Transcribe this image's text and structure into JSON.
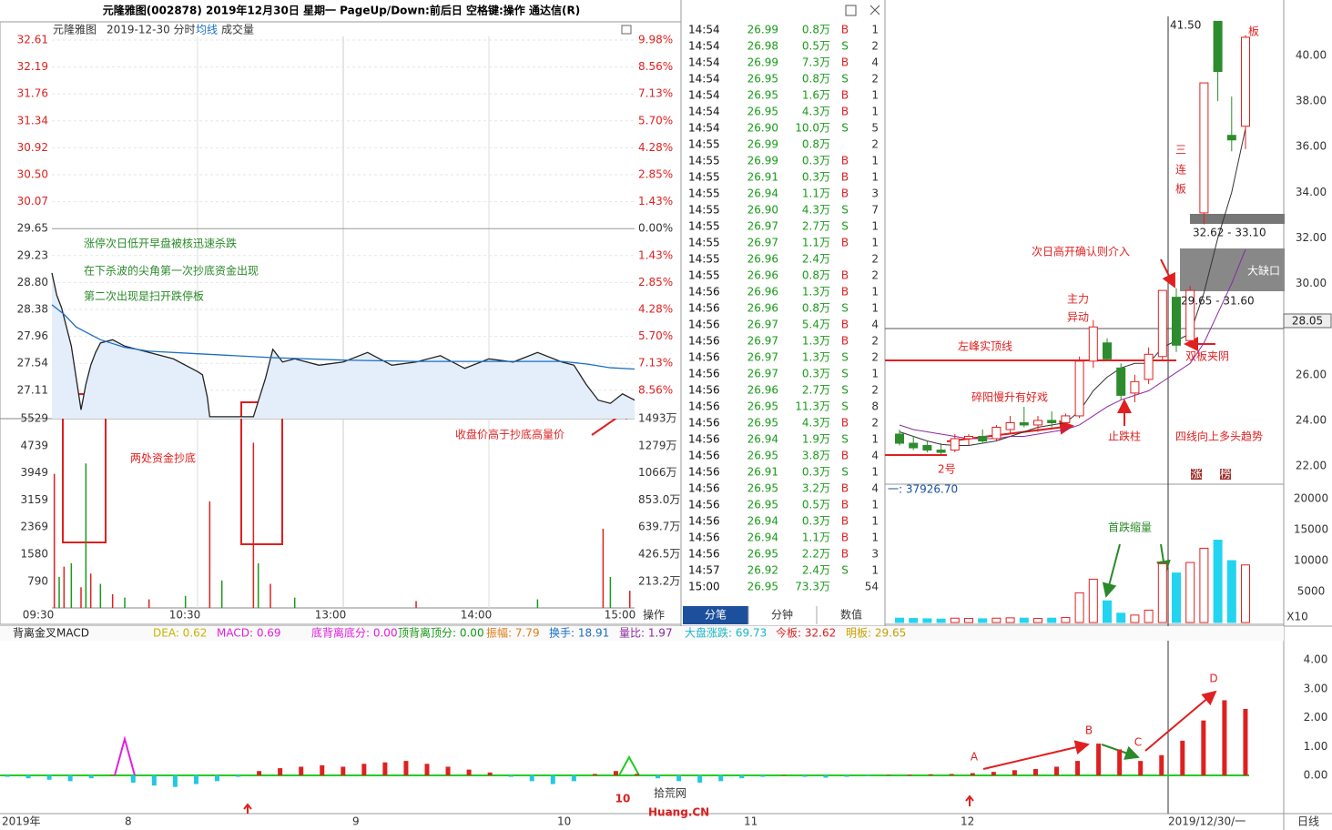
{
  "header": {
    "title": "元隆雅图(002878) 2019年12月30日 星期一 PageUp/Down:前后日 空格键:操作 通达信(R)"
  },
  "intraday": {
    "name": "元隆雅图",
    "date": "2019-12-30 分时",
    "avg_label": "均线",
    "vol_label": "成交量",
    "op": "操作",
    "price_ticks": [
      "32.61",
      "32.19",
      "31.76",
      "31.34",
      "30.92",
      "30.50",
      "30.07",
      "29.65",
      "29.23",
      "28.80",
      "28.38",
      "27.96",
      "27.54",
      "27.11"
    ],
    "pct_ticks": [
      "9.98%",
      "8.56%",
      "7.13%",
      "5.70%",
      "4.28%",
      "2.85%",
      "1.43%",
      "0.00%",
      "1.43%",
      "2.85%",
      "4.28%",
      "5.70%",
      "7.13%",
      "8.56%"
    ],
    "vol_ticks": [
      "5529",
      "4739",
      "3949",
      "3159",
      "2369",
      "1580",
      "790"
    ],
    "vol_ticks_right": [
      "1493万",
      "1279万",
      "1066万",
      "853.0万",
      "639.7万",
      "426.5万",
      "213.2万"
    ],
    "times": [
      "09:30",
      "10:30",
      "13:00",
      "14:00",
      "15:00"
    ],
    "price": {
      "t": [
        0,
        2,
        4,
        6,
        8,
        10,
        12,
        14,
        16,
        18,
        20,
        25,
        30,
        40,
        50,
        60,
        62,
        64,
        65,
        70,
        80,
        83,
        88,
        91,
        95,
        100,
        110,
        120,
        130,
        140,
        150,
        160,
        170,
        180,
        190,
        200,
        210,
        215,
        220,
        225,
        230,
        235,
        240
      ],
      "values": [
        28.95,
        28.6,
        28.4,
        28.1,
        27.8,
        27.3,
        26.8,
        27.2,
        27.5,
        27.7,
        27.85,
        27.9,
        27.8,
        27.7,
        27.6,
        27.4,
        27.35,
        27.0,
        26.69,
        26.69,
        26.69,
        26.69,
        27.3,
        27.75,
        27.55,
        27.6,
        27.5,
        27.55,
        27.7,
        27.5,
        27.55,
        27.65,
        27.45,
        27.6,
        27.55,
        27.7,
        27.55,
        27.5,
        27.2,
        26.95,
        26.9,
        27.05,
        26.95
      ]
    },
    "avg": {
      "t": [
        0,
        5,
        10,
        20,
        30,
        40,
        60,
        90,
        120,
        150,
        180,
        210,
        220,
        230,
        240
      ],
      "values": [
        28.45,
        28.3,
        28.1,
        27.9,
        27.78,
        27.72,
        27.68,
        27.62,
        27.58,
        27.56,
        27.56,
        27.56,
        27.52,
        27.46,
        27.44
      ]
    },
    "volume": {
      "t": [
        1,
        3,
        5,
        8,
        12,
        14,
        16,
        20,
        25,
        30,
        40,
        55,
        65,
        70,
        83,
        85,
        90,
        100,
        150,
        200,
        227,
        230,
        238
      ],
      "values": [
        3900,
        900,
        1200,
        1300,
        600,
        4200,
        1000,
        700,
        400,
        300,
        250,
        350,
        3100,
        800,
        4800,
        1300,
        700,
        300,
        200,
        250,
        2300,
        900,
        500
      ]
    },
    "notes": [
      "涨停次日低开早盘被核迅速杀跌",
      "在下杀波的尖角第一次抄底资金出现",
      "第二次出现是扫开跌停板"
    ],
    "callouts": [
      "两处资金抄底",
      "收盘价高于抄底高量价"
    ]
  },
  "ticks": {
    "tabs": [
      "分笔",
      "分钟",
      "数值"
    ],
    "rows": [
      [
        "14:54",
        "26.99",
        "0.8万",
        "B",
        "1"
      ],
      [
        "14:54",
        "26.98",
        "0.5万",
        "S",
        "2"
      ],
      [
        "14:54",
        "26.99",
        "7.3万",
        "B",
        "4"
      ],
      [
        "14:54",
        "26.95",
        "0.8万",
        "S",
        "2"
      ],
      [
        "14:54",
        "26.95",
        "1.6万",
        "B",
        "1"
      ],
      [
        "14:54",
        "26.95",
        "4.3万",
        "B",
        "1"
      ],
      [
        "14:54",
        "26.90",
        "10.0万",
        "S",
        "5"
      ],
      [
        "14:55",
        "26.99",
        "0.8万",
        null,
        "2"
      ],
      [
        "14:55",
        "26.99",
        "0.3万",
        "B",
        "1"
      ],
      [
        "14:55",
        "26.91",
        "0.3万",
        "B",
        "1"
      ],
      [
        "14:55",
        "26.94",
        "1.1万",
        "B",
        "3"
      ],
      [
        "14:55",
        "26.90",
        "4.3万",
        "S",
        "7"
      ],
      [
        "14:55",
        "26.97",
        "2.7万",
        "S",
        "1"
      ],
      [
        "14:55",
        "26.97",
        "1.1万",
        "B",
        "1"
      ],
      [
        "14:55",
        "26.96",
        "2.4万",
        null,
        "2"
      ],
      [
        "14:55",
        "26.96",
        "0.8万",
        "B",
        "2"
      ],
      [
        "14:56",
        "26.96",
        "1.3万",
        "B",
        "1"
      ],
      [
        "14:56",
        "26.96",
        "0.8万",
        "S",
        "1"
      ],
      [
        "14:56",
        "26.97",
        "5.4万",
        "B",
        "4"
      ],
      [
        "14:56",
        "26.97",
        "1.3万",
        "B",
        "2"
      ],
      [
        "14:56",
        "26.97",
        "1.3万",
        "S",
        "2"
      ],
      [
        "14:56",
        "26.97",
        "0.3万",
        "S",
        "1"
      ],
      [
        "14:56",
        "26.96",
        "2.7万",
        "S",
        "2"
      ],
      [
        "14:56",
        "26.95",
        "11.3万",
        "S",
        "8"
      ],
      [
        "14:56",
        "26.95",
        "4.3万",
        "B",
        "2"
      ],
      [
        "14:56",
        "26.94",
        "1.9万",
        "S",
        "1"
      ],
      [
        "14:56",
        "26.95",
        "3.8万",
        "B",
        "4"
      ],
      [
        "14:56",
        "26.91",
        "0.3万",
        "S",
        "1"
      ],
      [
        "14:56",
        "26.95",
        "3.2万",
        "B",
        "4"
      ],
      [
        "14:56",
        "26.95",
        "0.5万",
        "B",
        "1"
      ],
      [
        "14:56",
        "26.94",
        "0.3万",
        "B",
        "1"
      ],
      [
        "14:56",
        "26.94",
        "1.1万",
        "B",
        "1"
      ],
      [
        "14:56",
        "26.95",
        "2.2万",
        "B",
        "3"
      ],
      [
        "14:57",
        "26.92",
        "2.4万",
        "S",
        "1"
      ],
      [
        "15:00",
        "26.95",
        "73.3万",
        null,
        "54"
      ]
    ]
  },
  "daily": {
    "price_ticks": [
      "40.00",
      "38.00",
      "36.00",
      "34.00",
      "32.00",
      "30.00",
      "26.00",
      "24.00",
      "22.00"
    ],
    "last_price": "28.05",
    "candles": [
      [
        23.4,
        23.6,
        22.9,
        23.0
      ],
      [
        23.0,
        23.3,
        22.7,
        22.8
      ],
      [
        22.9,
        23.1,
        22.6,
        22.7
      ],
      [
        22.7,
        23.0,
        22.5,
        22.6
      ],
      [
        22.7,
        23.4,
        22.6,
        23.2
      ],
      [
        23.2,
        23.4,
        22.9,
        23.3
      ],
      [
        23.3,
        23.6,
        23.0,
        23.1
      ],
      [
        23.2,
        23.8,
        23.1,
        23.7
      ],
      [
        23.6,
        24.2,
        23.4,
        23.9
      ],
      [
        23.9,
        24.6,
        23.7,
        23.8
      ],
      [
        23.8,
        24.2,
        23.5,
        24.0
      ],
      [
        24.0,
        24.4,
        23.7,
        23.9
      ],
      [
        23.9,
        24.3,
        23.8,
        24.2
      ],
      [
        24.2,
        26.8,
        24.1,
        26.6
      ],
      [
        26.6,
        28.4,
        26.3,
        28.1
      ],
      [
        27.4,
        27.6,
        26.6,
        26.7
      ],
      [
        26.3,
        26.5,
        24.9,
        25.1
      ],
      [
        25.2,
        26.0,
        24.8,
        25.7
      ],
      [
        25.8,
        27.2,
        25.6,
        26.9
      ],
      [
        26.8,
        29.7,
        26.6,
        29.7
      ],
      [
        29.4,
        29.8,
        27.0,
        27.3
      ],
      [
        27.5,
        29.9,
        27.3,
        29.7
      ],
      [
        33.1,
        38.8,
        32.6,
        38.8
      ],
      [
        41.5,
        41.5,
        38.0,
        39.3
      ],
      [
        36.5,
        38.2,
        35.8,
        36.3
      ],
      [
        36.9,
        40.9,
        35.9,
        40.8
      ]
    ],
    "ma1": [
      23.5,
      23.3,
      23.1,
      22.95,
      22.9,
      22.9,
      23.0,
      23.1,
      23.3,
      23.5,
      23.7,
      23.8,
      23.9,
      24.4,
      25.3,
      25.9,
      26.3,
      26.5,
      26.5,
      27.2,
      27.5,
      27.8,
      29.6,
      32.0,
      34.0,
      36.8
    ],
    "ma2": [
      23.8,
      23.6,
      23.5,
      23.4,
      23.3,
      23.2,
      23.2,
      23.2,
      23.3,
      23.3,
      23.4,
      23.5,
      23.6,
      23.8,
      24.2,
      24.6,
      24.9,
      25.1,
      25.3,
      25.7,
      26.1,
      26.5,
      27.4,
      28.7,
      30.0,
      31.5
    ],
    "volumes": [
      700,
      650,
      600,
      550,
      700,
      650,
      600,
      700,
      750,
      700,
      650,
      700,
      800,
      4800,
      7000,
      3500,
      1500,
      1200,
      2000,
      9500,
      8000,
      9700,
      12000,
      13300,
      10000,
      9300
    ],
    "vol_ticks": [
      "20000",
      "15000",
      "10000",
      "5000"
    ],
    "vol_unit": "X10",
    "vol_note": "一: 37926.70",
    "high_label": "41.50",
    "annotations": [
      "板",
      "三",
      "连",
      "板",
      "32.62 - 33.10",
      "大缺口",
      "29.65 - 31.60",
      "次日高开确认则介入",
      "主力",
      "异动",
      "左峰实顶线",
      "双板夹阴",
      "碎阳慢升有好戏",
      "止跌柱",
      "四线向上多头趋势",
      "2号",
      "首跌缩量"
    ],
    "badges": [
      "涨",
      "榜"
    ]
  },
  "indicator": {
    "items": [
      "背离金叉MACD",
      "DEA: 0.62",
      "MACD: 0.69",
      "底背离底分: 0.00",
      "顶背离顶分: 0.00",
      "振幅: 7.79",
      "换手: 18.91",
      "量比: 1.97",
      "大盘涨跌: 69.73",
      "今板: 32.62",
      "明板: 29.65"
    ],
    "ticks": [
      "4.00",
      "3.00",
      "2.00",
      "1.00",
      "0.00"
    ],
    "bars": [
      -0.05,
      -0.1,
      -0.15,
      -0.2,
      -0.1,
      0.02,
      -0.25,
      -0.35,
      -0.4,
      -0.3,
      -0.2,
      -0.05,
      0.15,
      0.25,
      0.3,
      0.35,
      0.3,
      0.4,
      0.45,
      0.5,
      0.4,
      0.3,
      0.2,
      0.1,
      -0.05,
      -0.2,
      -0.3,
      -0.2,
      0.05,
      0.15,
      0.05,
      -0.1,
      -0.2,
      -0.25,
      -0.2,
      -0.1,
      -0.05,
      0.02,
      -0.05,
      -0.08,
      -0.05,
      -0.03,
      0.02,
      0.03,
      0.04,
      0.05,
      0.08,
      0.12,
      0.18,
      0.22,
      0.3,
      0.5,
      1.1,
      0.9,
      0.5,
      0.7,
      1.2,
      1.9,
      2.6,
      2.3
    ],
    "labels": [
      "A",
      "B",
      "C",
      "D"
    ],
    "x_labels": [
      "2019年",
      "8",
      "9",
      "10",
      "11",
      "12",
      "2019/12/30/一",
      "日线"
    ]
  },
  "watermark": {
    "logo": "10",
    "name": "拾荒网",
    "site": "Huang.CN"
  }
}
